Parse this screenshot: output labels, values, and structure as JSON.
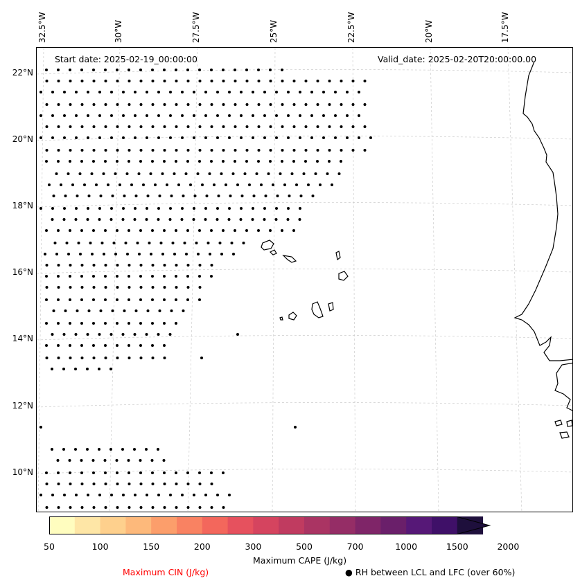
{
  "map": {
    "start_date": "Start date: 2025-02-19_00:00:00",
    "valid_date": "Valid_date: 2025-02-20T20:00:00.00",
    "lon_labels": [
      "32.5°W",
      "30°W",
      "27.5°W",
      "25°W",
      "22.5°W",
      "20°W",
      "17.5°W"
    ],
    "lat_labels": [
      "22°N",
      "20°N",
      "18°N",
      "16°N",
      "14°N",
      "12°N",
      "10°N"
    ],
    "gridlines": true,
    "colors": {
      "coastline": "#000000",
      "gridline": "#cccccc",
      "stipple": "#000000"
    }
  },
  "colorbar": {
    "label": "Maximum CAPE (J/kg)",
    "ticks": [
      "50",
      "100",
      "150",
      "200",
      "300",
      "500",
      "700",
      "1000",
      "1500",
      "2000"
    ],
    "colors": [
      "#fffdbf",
      "#fee6a6",
      "#fed08d",
      "#fdb97b",
      "#fc9e6b",
      "#f98262",
      "#f3675c",
      "#e6515e",
      "#d5445f",
      "#c03b60",
      "#aa3463",
      "#952d66",
      "#7f2568",
      "#6a1f6a",
      "#561877",
      "#3f1068",
      "#1e0f3c"
    ],
    "extend": "max"
  },
  "legend": {
    "cin_label": "Maximum CIN (J/kg)",
    "cin_color": "#ff0000",
    "rh_label": "● RH between LCL and LFC (over 60%)"
  }
}
